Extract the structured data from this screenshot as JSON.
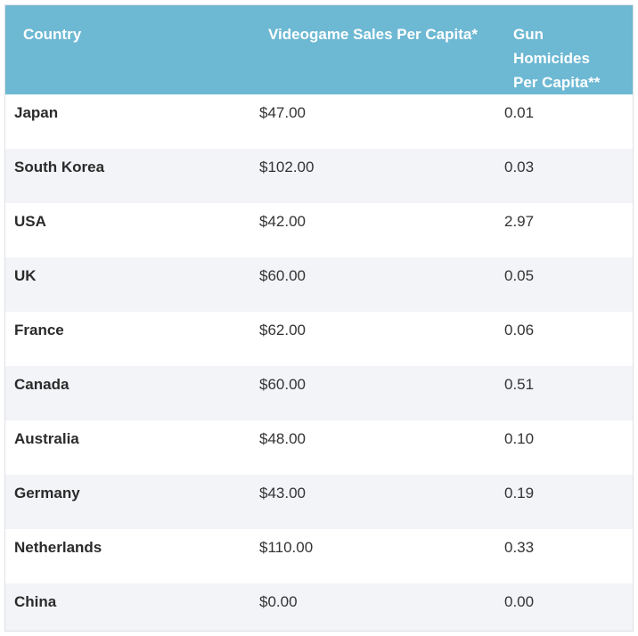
{
  "table": {
    "headers": [
      "Country",
      "Videogame Sales Per Capita*",
      "Gun Homicides Per Capita**"
    ],
    "rows": [
      {
        "country": "Japan",
        "sales": "$47.00",
        "homicides": "0.01"
      },
      {
        "country": "South Korea",
        "sales": "$102.00",
        "homicides": "0.03"
      },
      {
        "country": "USA",
        "sales": "$42.00",
        "homicides": "2.97"
      },
      {
        "country": "UK",
        "sales": "$60.00",
        "homicides": "0.05"
      },
      {
        "country": "France",
        "sales": "$62.00",
        "homicides": "0.06"
      },
      {
        "country": "Canada",
        "sales": "$60.00",
        "homicides": "0.51"
      },
      {
        "country": "Australia",
        "sales": "$48.00",
        "homicides": "0.10"
      },
      {
        "country": "Germany",
        "sales": "$43.00",
        "homicides": "0.19"
      },
      {
        "country": "Netherlands",
        "sales": "$110.00",
        "homicides": "0.33"
      },
      {
        "country": "China",
        "sales": "$0.00",
        "homicides": "0.00"
      }
    ]
  },
  "colors": {
    "header_bg": "#6db8d3",
    "header_text": "#ffffff",
    "stripe": "#f3f4f8"
  }
}
